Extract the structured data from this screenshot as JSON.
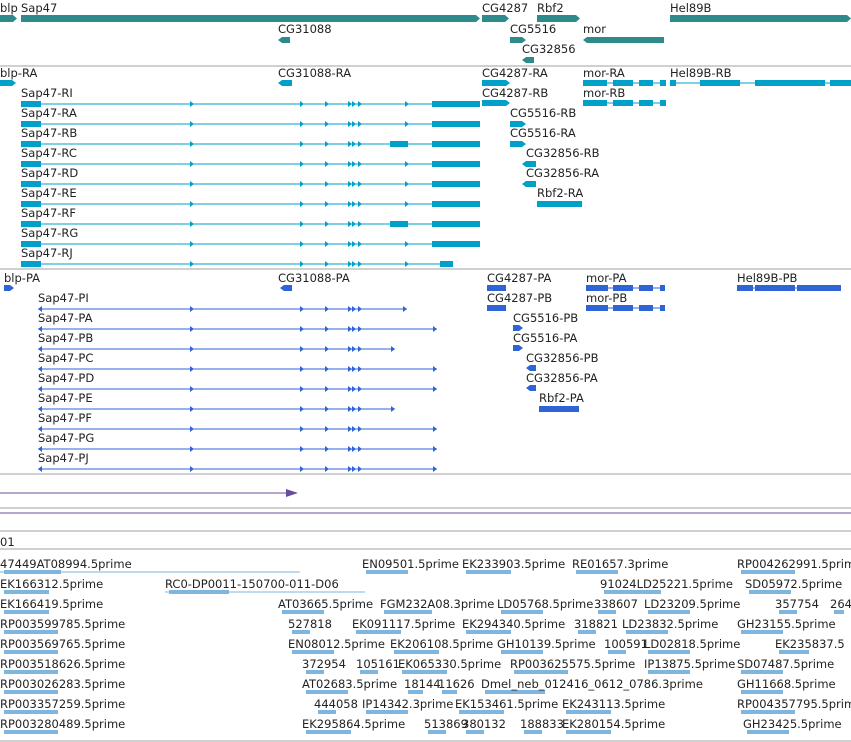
{
  "colors": {
    "gene": "#2e8b8b",
    "transcript_cyan": "#00a0c8",
    "transcript_blue": "#2f64d6",
    "purple": "#6a4c9c",
    "est": "#7eb6e0",
    "separator": "#a0a0a0"
  },
  "tracks": {
    "genes": [
      {
        "name": "blp"
      },
      {
        "name": "Sap47"
      },
      {
        "name": "CG4287"
      },
      {
        "name": "Rbf2"
      },
      {
        "name": "Hel89B"
      },
      {
        "name": "CG31088"
      },
      {
        "name": "CG5516"
      },
      {
        "name": "mor"
      },
      {
        "name": "CG32856"
      }
    ],
    "transcripts_a": [
      {
        "name": "blp-RA"
      },
      {
        "name": "CG31088-RA"
      },
      {
        "name": "CG4287-RA"
      },
      {
        "name": "mor-RA"
      },
      {
        "name": "Hel89B-RB"
      },
      {
        "name": "Sap47-RI"
      },
      {
        "name": "CG4287-RB"
      },
      {
        "name": "mor-RB"
      },
      {
        "name": "Sap47-RA"
      },
      {
        "name": "CG5516-RB"
      },
      {
        "name": "Sap47-RB"
      },
      {
        "name": "CG5516-RA"
      },
      {
        "name": "Sap47-RC"
      },
      {
        "name": "CG32856-RB"
      },
      {
        "name": "Sap47-RD"
      },
      {
        "name": "CG32856-RA"
      },
      {
        "name": "Sap47-RE"
      },
      {
        "name": "Rbf2-RA"
      },
      {
        "name": "Sap47-RF"
      },
      {
        "name": "Sap47-RG"
      },
      {
        "name": "Sap47-RJ"
      }
    ],
    "transcripts_b": [
      {
        "name": "blp-PA"
      },
      {
        "name": "CG31088-PA"
      },
      {
        "name": "CG4287-PA"
      },
      {
        "name": "mor-PA"
      },
      {
        "name": "Hel89B-PB"
      },
      {
        "name": "Sap47-PI"
      },
      {
        "name": "CG4287-PB"
      },
      {
        "name": "mor-PB"
      },
      {
        "name": "Sap47-PA"
      },
      {
        "name": "CG5516-PB"
      },
      {
        "name": "Sap47-PB"
      },
      {
        "name": "CG5516-PA"
      },
      {
        "name": "Sap47-PC"
      },
      {
        "name": "CG32856-PB"
      },
      {
        "name": "Sap47-PD"
      },
      {
        "name": "CG32856-PA"
      },
      {
        "name": "Sap47-PE"
      },
      {
        "name": "Rbf2-PA"
      },
      {
        "name": "Sap47-PF"
      },
      {
        "name": "Sap47-PG"
      },
      {
        "name": "Sap47-PJ"
      }
    ],
    "small_label": "01",
    "est_rows": [
      [
        "47449AT08994.5prime",
        "EN09501.5prime",
        "EK233903.5prime",
        "RE01657.3prime",
        "RP004262991.5prime"
      ],
      [
        "EK166312.5prime",
        "RC0-DP0011-150700-011-D06",
        "91024LD25221.5prime",
        "SD05972.5prime"
      ],
      [
        "EK166419.5prime",
        "AT03665.5prime",
        "FGM232A08.3prime",
        "LD05768.5prime",
        "338607",
        "LD23209.5prime",
        "357754",
        "264"
      ],
      [
        "RP003599785.5prime",
        "527818",
        "EK091117.5prime",
        "EK294340.5prime",
        "318821",
        "LD23832.5prime",
        "GH23155.5prime"
      ],
      [
        "RP003569765.5prime",
        "EN08012.5prime",
        "EK206108.5prime",
        "GH10139.5prime",
        "100591",
        "LD02818.5prime",
        "EK235837.5"
      ],
      [
        "RP003518626.5prime",
        "372954",
        "105161",
        "EK065330.5prime",
        "RP003625575.5prime",
        "IP13875.5prime",
        "SD07487.5prime"
      ],
      [
        "RP003026283.5prime",
        "AT02683.5prime",
        "18144",
        "11626",
        "Dmel_neb_012416_0612_0786.3prime",
        "GH11668.5prime"
      ],
      [
        "RP003357259.5prime",
        "444058",
        "IP14342.3prime",
        "EK153461.5prime",
        "EK243113.5prime",
        "RP004357795.5prime"
      ],
      [
        "RP003280489.5prime",
        "EK295864.5prime",
        "513869",
        "380132",
        "188833",
        "EK280154.5prime",
        "GH23425.5prime"
      ]
    ]
  }
}
